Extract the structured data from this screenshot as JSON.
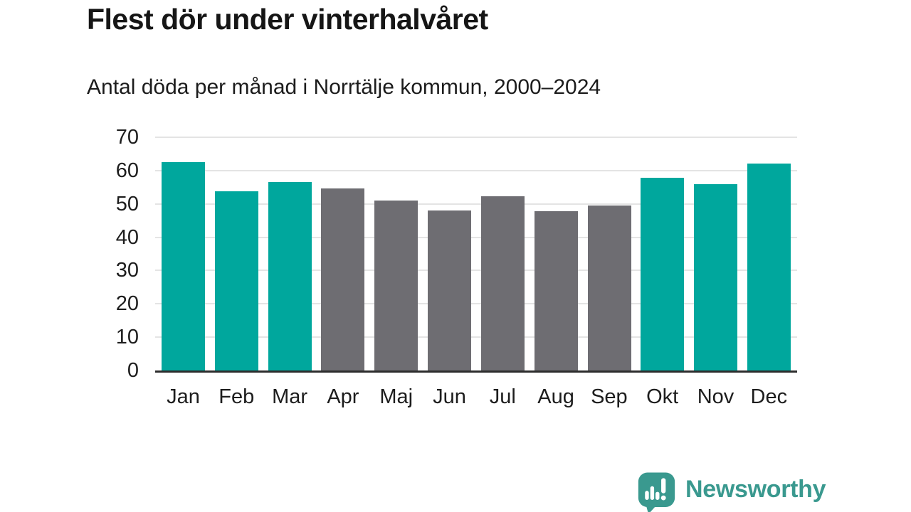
{
  "chart_data": {
    "type": "bar",
    "title": "Flest dör under vinterhalvåret",
    "subtitle": "Antal döda per månad i Norrtälje kommun, 2000–2024",
    "categories": [
      "Jan",
      "Feb",
      "Mar",
      "Apr",
      "Maj",
      "Jun",
      "Jul",
      "Aug",
      "Sep",
      "Okt",
      "Nov",
      "Dec"
    ],
    "values": [
      62.5,
      53.7,
      56.5,
      54.7,
      51.0,
      48.0,
      52.3,
      47.8,
      49.5,
      57.9,
      56.0,
      62.1
    ],
    "groups": [
      "winter",
      "winter",
      "winter",
      "summer",
      "summer",
      "summer",
      "summer",
      "summer",
      "summer",
      "winter",
      "winter",
      "winter"
    ],
    "palette": {
      "winter": "#00a79d",
      "summer": "#6e6d72"
    },
    "xlabel": "",
    "ylabel": "",
    "ylim": [
      0,
      70
    ],
    "yticks": [
      0,
      10,
      20,
      30,
      40,
      50,
      60,
      70
    ],
    "grid": true,
    "legend": false,
    "gridline_color": "#e4e4e4",
    "axis_line_color": "#2d2d2d",
    "background": "#ffffff"
  },
  "footer": {
    "brand": "Newsworthy",
    "brand_color": "#3a998f",
    "logo_icon": "bar-chart-speech-bubble-icon"
  }
}
